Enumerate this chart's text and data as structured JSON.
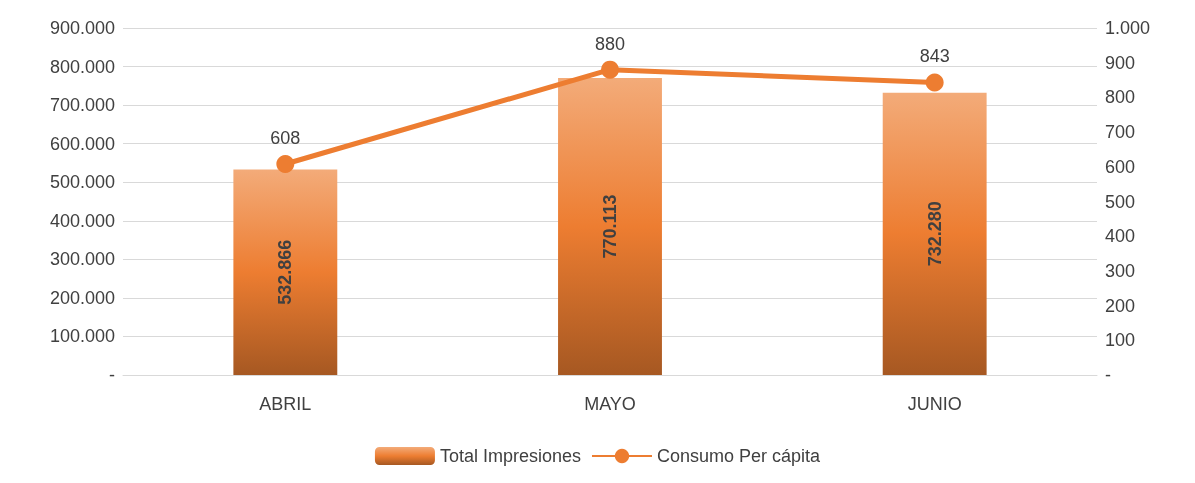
{
  "chart_data": {
    "type": "bar",
    "categories": [
      "ABRIL",
      "MAYO",
      "JUNIO"
    ],
    "series": [
      {
        "name": "Total Impresiones",
        "color": "#ed7d31",
        "values": [
          532866,
          770113,
          732280
        ],
        "value_labels": [
          "532.866",
          "770.113",
          "732.280"
        ]
      },
      {
        "name": "Consumo Per cápita",
        "type": "line",
        "axis": "y2",
        "color": "#ed7d31",
        "values": [
          608,
          880,
          843
        ],
        "value_labels": [
          "608",
          "880",
          "843"
        ]
      }
    ],
    "ylim": [
      0,
      900000
    ],
    "yticks": [
      {
        "value": 0,
        "label": "-"
      },
      {
        "value": 100000,
        "label": "100.000"
      },
      {
        "value": 200000,
        "label": "200.000"
      },
      {
        "value": 300000,
        "label": "300.000"
      },
      {
        "value": 400000,
        "label": "400.000"
      },
      {
        "value": 500000,
        "label": "500.000"
      },
      {
        "value": 600000,
        "label": "600.000"
      },
      {
        "value": 700000,
        "label": "700.000"
      },
      {
        "value": 800000,
        "label": "800.000"
      },
      {
        "value": 900000,
        "label": "900.000"
      }
    ],
    "y2lim": [
      0,
      1000
    ],
    "y2ticks": [
      {
        "value": 0,
        "label": "-"
      },
      100,
      200,
      300,
      400,
      500,
      600,
      700,
      800,
      900,
      {
        "value": 1000,
        "label": "1.000"
      }
    ],
    "grid": "y",
    "legend": "bottom",
    "marker": "circle"
  }
}
